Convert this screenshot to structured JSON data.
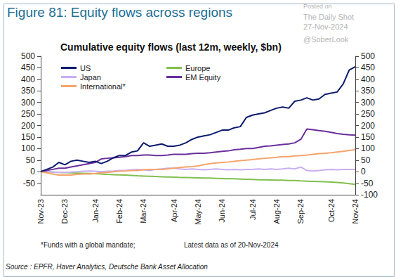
{
  "chart_data": {
    "type": "line",
    "title": "Figure 81: Equity flows across regions",
    "subtitle": "Cumulative equity flows (last 12m, weekly, $bn)",
    "notes": [
      "*Funds with a global mandate;",
      "Latest data as of 20-Nov-2024"
    ],
    "source": "Source : EPFR, Haver Analytics, Deutsche Bank Asset Allocation",
    "watermark": [
      "Posted on",
      "The Daily Shot",
      "27-Nov-2024",
      "@SoberLook"
    ],
    "categories": [
      "Nov-23",
      null,
      null,
      null,
      "Dec-23",
      null,
      null,
      null,
      null,
      "Jan-24",
      null,
      null,
      null,
      "Feb-24",
      null,
      null,
      null,
      "Mar-24",
      null,
      null,
      null,
      null,
      "Apr-24",
      null,
      null,
      null,
      "May-24",
      null,
      null,
      null,
      "Jun-24",
      null,
      null,
      null,
      null,
      "Jul-24",
      null,
      null,
      null,
      "Aug-24",
      null,
      null,
      null,
      "Sep-24",
      null,
      null,
      null,
      null,
      "Oct-24",
      null,
      null,
      null,
      "Nov-24"
    ],
    "series": [
      {
        "name": "US",
        "color": "#0b1a6e",
        "values": [
          0,
          10,
          20,
          40,
          30,
          45,
          50,
          45,
          40,
          45,
          35,
          45,
          60,
          70,
          70,
          85,
          90,
          125,
          110,
          115,
          120,
          110,
          110,
          115,
          125,
          140,
          150,
          155,
          160,
          170,
          180,
          180,
          190,
          195,
          235,
          245,
          250,
          255,
          265,
          275,
          280,
          275,
          305,
          310,
          320,
          310,
          315,
          335,
          340,
          345,
          380,
          440,
          455
        ]
      },
      {
        "name": "Europe",
        "color": "#82bf4e",
        "values": [
          0,
          -1,
          -2,
          -3,
          -4,
          -5,
          -6,
          -7,
          -8,
          -9,
          -10,
          -12,
          -13,
          -14,
          -15,
          -16,
          -18,
          -19,
          -20,
          -21,
          -22,
          -23,
          -24,
          -25,
          -25,
          -26,
          -27,
          -28,
          -28,
          -29,
          -30,
          -31,
          -31,
          -32,
          -33,
          -34,
          -35,
          -35,
          -36,
          -37,
          -37,
          -38,
          -38,
          -40,
          -41,
          -42,
          -43,
          -44,
          -45,
          -47,
          -49,
          -52,
          -55
        ]
      },
      {
        "name": "Japan",
        "color": "#c9aef2",
        "values": [
          0,
          0,
          -2,
          -3,
          -3,
          -2,
          0,
          2,
          3,
          2,
          0,
          2,
          3,
          5,
          5,
          8,
          10,
          8,
          5,
          10,
          12,
          15,
          15,
          12,
          10,
          12,
          10,
          8,
          10,
          12,
          10,
          8,
          10,
          8,
          10,
          10,
          12,
          10,
          12,
          10,
          12,
          15,
          12,
          20,
          5,
          3,
          5,
          8,
          10,
          8,
          10,
          10,
          10
        ]
      },
      {
        "name": "EM Equity",
        "color": "#6b2f9c",
        "values": [
          0,
          5,
          10,
          15,
          15,
          20,
          25,
          30,
          35,
          40,
          55,
          58,
          60,
          62,
          65,
          70,
          70,
          72,
          72,
          70,
          70,
          72,
          75,
          75,
          75,
          78,
          80,
          80,
          82,
          85,
          88,
          90,
          95,
          97,
          100,
          100,
          105,
          110,
          112,
          115,
          118,
          120,
          125,
          140,
          185,
          182,
          178,
          175,
          170,
          165,
          162,
          160,
          158
        ]
      },
      {
        "name": "International*",
        "color": "#f5a46c",
        "values": [
          0,
          -5,
          -10,
          -15,
          -15,
          -15,
          -12,
          -10,
          -10,
          -8,
          -5,
          -3,
          0,
          2,
          3,
          5,
          5,
          8,
          10,
          10,
          10,
          12,
          15,
          18,
          20,
          22,
          25,
          30,
          35,
          38,
          40,
          42,
          45,
          48,
          50,
          52,
          55,
          58,
          60,
          62,
          65,
          65,
          68,
          70,
          72,
          75,
          78,
          80,
          82,
          85,
          88,
          92,
          95
        ]
      }
    ],
    "ylim": [
      -100,
      500
    ],
    "yticks": [
      -50,
      0,
      50,
      100,
      150,
      200,
      250,
      300,
      350,
      400,
      450,
      500
    ],
    "y2lim": [
      -100,
      500
    ],
    "y2ticks": [
      -100,
      -50,
      0,
      50,
      100,
      150,
      200,
      250,
      300,
      350,
      400,
      450,
      500
    ],
    "grid": false,
    "legend": "upper left"
  }
}
